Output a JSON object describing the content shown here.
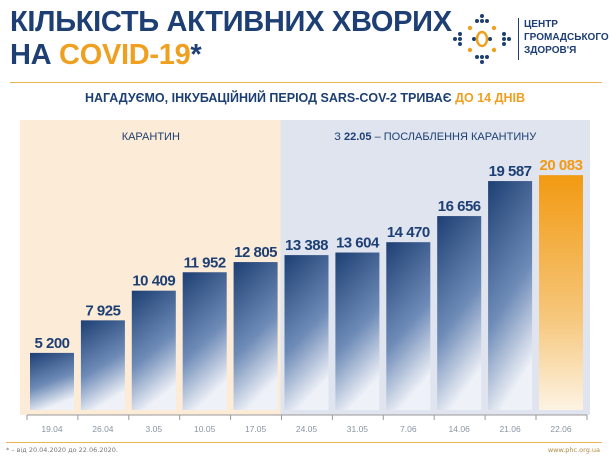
{
  "header": {
    "title_line1": "КІЛЬКІСТЬ АКТИВНИХ ХВОРИХ",
    "title_line2_prefix": "НА ",
    "title_line2_accent": "COVID-19",
    "title_asterisk": "*"
  },
  "logo": {
    "line1": "ЦЕНТР",
    "line2": "ГРОМАДСЬКОГО",
    "line3": "ЗДОРОВ'Я"
  },
  "subtitle": {
    "text": "НАГАДУЄМО, ІНКУБАЦІЙНИЙ ПЕРІОД SARS-COV-2 ТРИВАЄ ",
    "accent": "ДО 14 ДНІВ"
  },
  "chart_data": {
    "type": "bar",
    "categories": [
      "19.04",
      "26.04",
      "3.05",
      "10.05",
      "17.05",
      "24.05",
      "31.05",
      "7.06",
      "14.06",
      "21.06",
      "22.06"
    ],
    "values": [
      5200,
      7925,
      10409,
      11952,
      12805,
      13388,
      13604,
      14470,
      16656,
      19587,
      20083
    ],
    "labels": [
      "5 200",
      "7 925",
      "10 409",
      "11 952",
      "12 805",
      "13 388",
      "13 604",
      "14 470",
      "16 656",
      "19 587",
      "20 083"
    ],
    "regions": [
      {
        "label": "КАРАНТИН",
        "from": "19.04",
        "to": "17.05",
        "color": "#fcebd6"
      },
      {
        "label_prefix": "З ",
        "label_bold": "22.05",
        "label_suffix": " – ПОСЛАБЛЕННЯ КАРАНТИНУ",
        "from": "24.05",
        "to": "22.06",
        "color": "#dfe4ef"
      }
    ],
    "colors": {
      "bar": "#1d3f73",
      "highlight": "#f29a12"
    },
    "ylim": [
      0,
      21000
    ]
  },
  "footer": {
    "footnote": "* – від 20.04.2020 до 22.06.2020.",
    "site": "www.phc.org.ua"
  }
}
